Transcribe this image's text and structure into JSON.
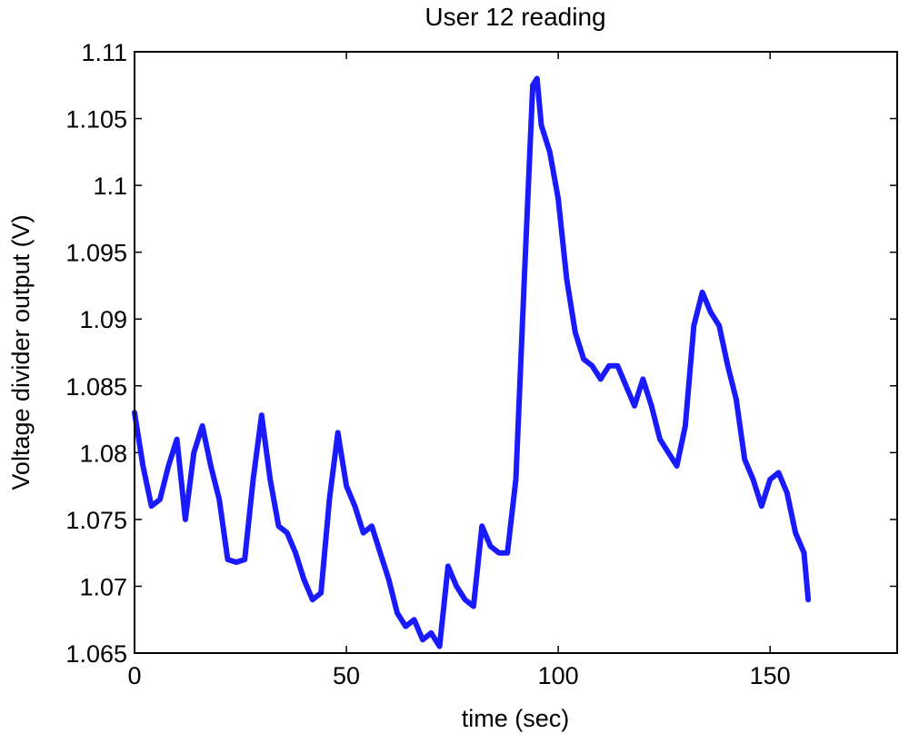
{
  "chart_data": {
    "type": "line",
    "title": "User 12 reading",
    "xlabel": "time (sec)",
    "ylabel": "Voltage divider output (V)",
    "xlim": [
      0,
      180
    ],
    "ylim": [
      1.065,
      1.11
    ],
    "xticks": [
      0,
      50,
      100,
      150
    ],
    "xtick_labels": [
      "0",
      "50",
      "100",
      "150"
    ],
    "yticks": [
      1.065,
      1.07,
      1.075,
      1.08,
      1.085,
      1.09,
      1.095,
      1.1,
      1.105,
      1.11
    ],
    "ytick_labels": [
      "1.065",
      "1.07",
      "1.075",
      "1.08",
      "1.085",
      "1.09",
      "1.095",
      "1.1",
      "1.105",
      "1.11"
    ],
    "grid": false,
    "series": [
      {
        "color": "#1a1aff",
        "x": [
          0,
          2,
          4,
          6,
          8,
          10,
          12,
          14,
          16,
          18,
          20,
          22,
          24,
          26,
          28,
          30,
          32,
          34,
          36,
          38,
          40,
          42,
          44,
          46,
          48,
          50,
          52,
          54,
          56,
          58,
          60,
          62,
          64,
          66,
          68,
          70,
          72,
          74,
          76,
          78,
          80,
          82,
          84,
          86,
          88,
          90,
          92,
          94,
          95,
          96,
          98,
          100,
          102,
          104,
          106,
          108,
          110,
          112,
          114,
          116,
          118,
          120,
          122,
          124,
          126,
          128,
          130,
          132,
          134,
          136,
          138,
          140,
          142,
          144,
          146,
          148,
          150,
          152,
          154,
          156,
          158,
          159
        ],
        "y": [
          1.083,
          1.079,
          1.076,
          1.0765,
          1.079,
          1.081,
          1.075,
          1.08,
          1.082,
          1.079,
          1.0765,
          1.072,
          1.0718,
          1.072,
          1.078,
          1.0828,
          1.078,
          1.0745,
          1.074,
          1.0725,
          1.0705,
          1.069,
          1.0695,
          1.0765,
          1.0815,
          1.0775,
          1.076,
          1.074,
          1.0745,
          1.0725,
          1.0705,
          1.068,
          1.067,
          1.0675,
          1.066,
          1.0665,
          1.0655,
          1.0715,
          1.07,
          1.069,
          1.0685,
          1.0745,
          1.073,
          1.0725,
          1.0725,
          1.078,
          1.093,
          1.1075,
          1.108,
          1.1045,
          1.1025,
          1.099,
          1.093,
          1.089,
          1.087,
          1.0865,
          1.0855,
          1.0865,
          1.0865,
          1.085,
          1.0835,
          1.0855,
          1.0835,
          1.081,
          1.08,
          1.079,
          1.082,
          1.0895,
          1.092,
          1.0905,
          1.0895,
          1.0865,
          1.084,
          1.0795,
          1.078,
          1.076,
          1.078,
          1.0785,
          1.077,
          1.074,
          1.0725,
          1.069
        ]
      }
    ]
  }
}
